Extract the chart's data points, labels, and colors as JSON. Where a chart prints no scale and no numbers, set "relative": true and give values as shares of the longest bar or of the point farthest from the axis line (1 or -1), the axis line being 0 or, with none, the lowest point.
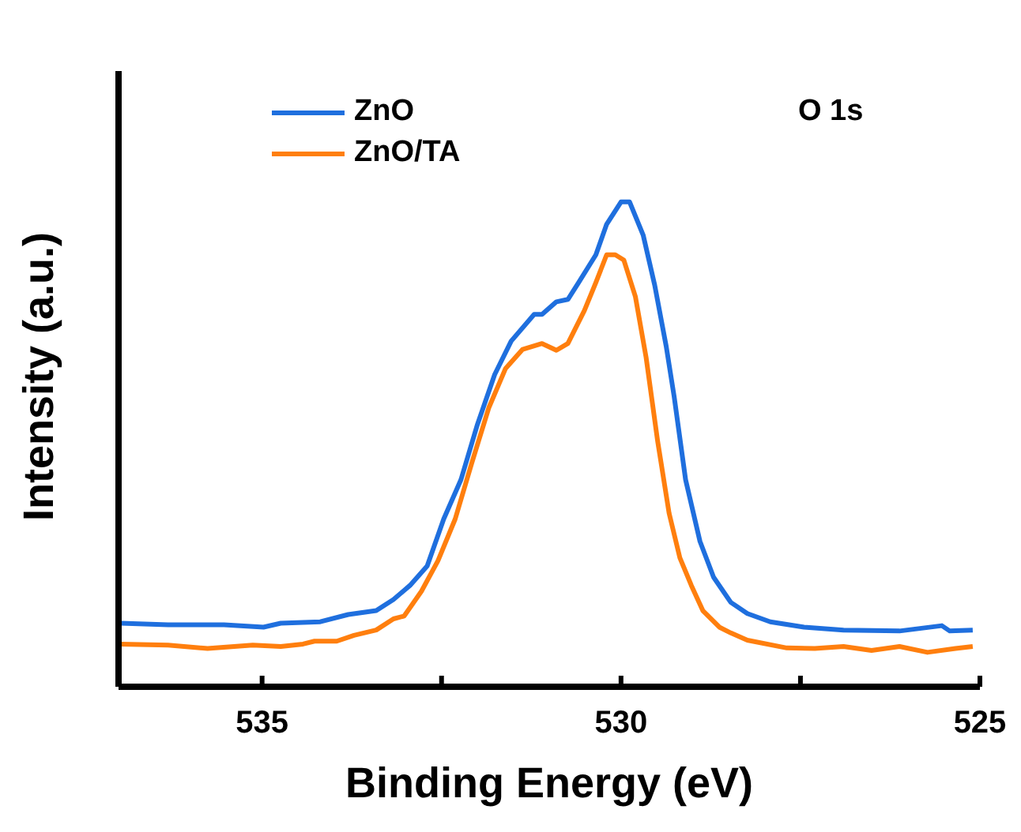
{
  "chart_data": {
    "type": "line",
    "relative": true,
    "xlabel": "Binding Energy (eV)",
    "ylabel": "Intensity (a.u.)",
    "annotations": [
      "O 1s"
    ],
    "xlim": [
      537,
      525
    ],
    "xticks": [
      535,
      {
        "value": 532.5,
        "label": null
      },
      530,
      {
        "value": 527.5,
        "label": null
      },
      525
    ],
    "tick_labels": "x",
    "legend": "top left",
    "series": [
      {
        "name": "ZnO",
        "color": "#1f6fde",
        "x": [
          536.97,
          536.31,
          535.53,
          534.98,
          534.74,
          534.19,
          533.8,
          533.41,
          533.17,
          532.94,
          532.7,
          532.47,
          532.23,
          532.0,
          531.76,
          531.53,
          531.21,
          531.1,
          530.9,
          530.74,
          530.59,
          530.35,
          530.2,
          530.0,
          529.88,
          529.69,
          529.53,
          529.37,
          529.26,
          529.1,
          528.9,
          528.71,
          528.47,
          528.24,
          527.92,
          527.45,
          526.9,
          526.12,
          525.53,
          525.42,
          525.1
        ],
        "values": [
          0.131,
          0.128,
          0.128,
          0.123,
          0.131,
          0.134,
          0.149,
          0.157,
          0.18,
          0.209,
          0.249,
          0.346,
          0.427,
          0.541,
          0.644,
          0.713,
          0.768,
          0.768,
          0.794,
          0.799,
          0.834,
          0.891,
          0.954,
          1.0,
          1.0,
          0.931,
          0.828,
          0.702,
          0.599,
          0.427,
          0.3,
          0.226,
          0.174,
          0.151,
          0.134,
          0.123,
          0.117,
          0.115,
          0.126,
          0.115,
          0.117
        ]
      },
      {
        "name": "ZnO/TA",
        "color": "#ff7f0e",
        "x": [
          536.97,
          536.31,
          535.76,
          535.13,
          534.74,
          534.43,
          534.27,
          533.96,
          533.72,
          533.41,
          533.17,
          533.02,
          532.78,
          532.55,
          532.31,
          532.08,
          531.84,
          531.61,
          531.37,
          531.1,
          530.9,
          530.74,
          530.51,
          530.35,
          530.2,
          530.08,
          529.96,
          529.8,
          529.65,
          529.49,
          529.33,
          529.18,
          529.02,
          528.86,
          528.63,
          528.47,
          528.24,
          527.69,
          527.3,
          526.9,
          526.51,
          526.12,
          525.73,
          525.34,
          525.1
        ],
        "values": [
          0.088,
          0.086,
          0.079,
          0.086,
          0.083,
          0.088,
          0.094,
          0.094,
          0.106,
          0.117,
          0.14,
          0.146,
          0.197,
          0.26,
          0.346,
          0.461,
          0.576,
          0.656,
          0.696,
          0.708,
          0.694,
          0.708,
          0.776,
          0.834,
          0.891,
          0.891,
          0.88,
          0.805,
          0.679,
          0.507,
          0.358,
          0.266,
          0.209,
          0.157,
          0.123,
          0.111,
          0.096,
          0.08,
          0.079,
          0.083,
          0.075,
          0.083,
          0.071,
          0.079,
          0.083
        ]
      }
    ]
  }
}
